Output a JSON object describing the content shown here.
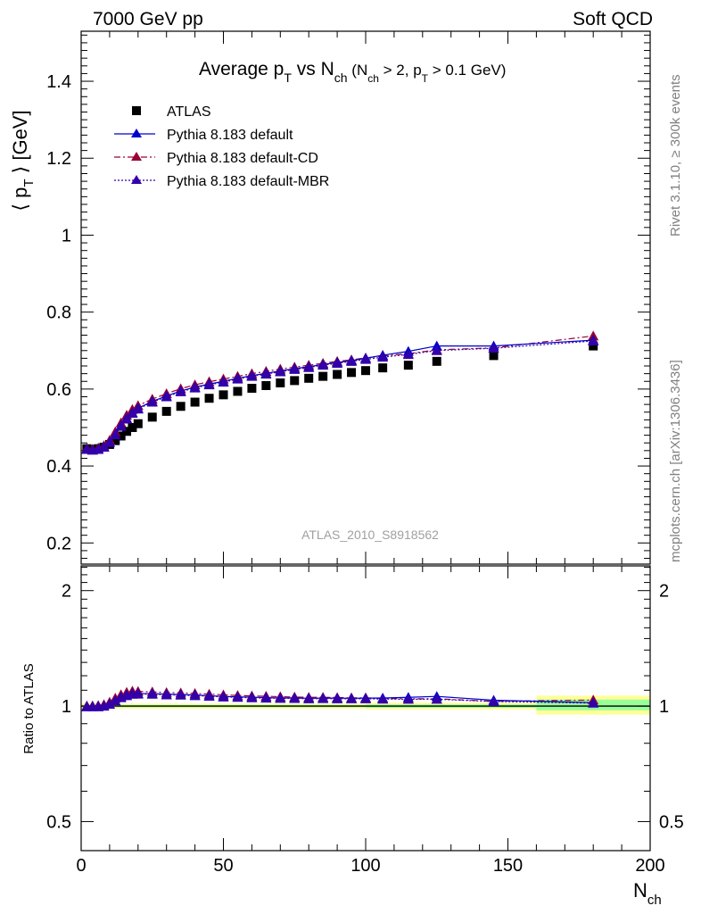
{
  "header": {
    "left": "7000 GeV pp",
    "right": "Soft QCD"
  },
  "side_labels": {
    "top": "Rivet 3.1.10, ≥ 300k events",
    "bottom": "mcplots.cern.ch [arXiv:1306.3436]"
  },
  "watermark": "ATLAS_2010_S8918562",
  "colors": {
    "atlas": "#000000",
    "default": "#0000cc",
    "cd": "#990033",
    "mbr": "#3300aa",
    "band_yellow": "#ffff99",
    "band_green": "#99ff99"
  },
  "chart_data": [
    {
      "type": "line",
      "title_parts": {
        "main": "Average p",
        "main_sub": "T",
        "mid": " vs N",
        "mid_sub": "ch",
        "cut_open": " (N",
        "cut_sub1": "ch",
        "cut_mid": " > 2, p",
        "cut_sub2": "T",
        "cut_close": " > 0.1 GeV)"
      },
      "ylabel_parts": {
        "open": "⟨ p",
        "sub": "T",
        "close": " ⟩ [GeV]"
      },
      "xlim": [
        0,
        200
      ],
      "ylim": [
        0.145,
        1.53
      ],
      "yticks": [
        0.2,
        0.4,
        0.6,
        0.8,
        1,
        1.2,
        1.4
      ],
      "ytick_labels": [
        "0.2",
        "0.4",
        "0.6",
        "0.8",
        "1",
        "1.2",
        "1.4"
      ],
      "legend": [
        {
          "key": "atlas",
          "label": "ATLAS"
        },
        {
          "key": "default",
          "label": "Pythia 8.183 default"
        },
        {
          "key": "cd",
          "label": "Pythia 8.183 default-CD"
        },
        {
          "key": "mbr",
          "label": "Pythia 8.183 default-MBR"
        }
      ],
      "series": [
        {
          "key": "atlas",
          "name": "ATLAS",
          "marker": "square",
          "x": [
            2,
            4,
            6,
            8,
            10,
            12,
            14,
            16,
            18,
            20,
            25,
            30,
            35,
            40,
            45,
            50,
            55,
            60,
            65,
            70,
            75,
            80,
            85,
            90,
            95,
            100,
            106,
            115,
            125,
            145,
            180
          ],
          "y": [
            0.445,
            0.443,
            0.445,
            0.449,
            0.456,
            0.466,
            0.478,
            0.49,
            0.5,
            0.51,
            0.527,
            0.542,
            0.555,
            0.566,
            0.576,
            0.585,
            0.594,
            0.602,
            0.609,
            0.616,
            0.622,
            0.628,
            0.633,
            0.638,
            0.643,
            0.648,
            0.655,
            0.662,
            0.672,
            0.687,
            0.712
          ]
        },
        {
          "key": "default",
          "name": "Pythia 8.183 default",
          "marker": "triangle",
          "dash": "",
          "x": [
            2,
            4,
            6,
            8,
            10,
            12,
            14,
            16,
            18,
            20,
            25,
            30,
            35,
            40,
            45,
            50,
            55,
            60,
            65,
            70,
            75,
            80,
            85,
            90,
            95,
            100,
            106,
            115,
            125,
            145,
            180
          ],
          "y": [
            0.444,
            0.442,
            0.444,
            0.45,
            0.462,
            0.482,
            0.505,
            0.524,
            0.539,
            0.55,
            0.568,
            0.582,
            0.595,
            0.605,
            0.613,
            0.62,
            0.628,
            0.635,
            0.641,
            0.647,
            0.653,
            0.658,
            0.664,
            0.669,
            0.674,
            0.68,
            0.688,
            0.698,
            0.712,
            0.712,
            0.727
          ]
        },
        {
          "key": "cd",
          "name": "Pythia 8.183 default-CD",
          "marker": "triangle",
          "dash": "7,3,2,3",
          "x": [
            2,
            4,
            6,
            8,
            10,
            12,
            14,
            16,
            18,
            20,
            25,
            30,
            35,
            40,
            45,
            50,
            55,
            60,
            65,
            70,
            75,
            80,
            85,
            90,
            95,
            100,
            106,
            115,
            125,
            145,
            180
          ],
          "y": [
            0.446,
            0.444,
            0.447,
            0.453,
            0.467,
            0.489,
            0.512,
            0.532,
            0.547,
            0.557,
            0.574,
            0.588,
            0.601,
            0.611,
            0.619,
            0.626,
            0.633,
            0.64,
            0.646,
            0.652,
            0.657,
            0.662,
            0.667,
            0.672,
            0.676,
            0.681,
            0.686,
            0.692,
            0.702,
            0.707,
            0.738
          ]
        },
        {
          "key": "mbr",
          "name": "Pythia 8.183 default-MBR",
          "marker": "triangle",
          "dash": "2,2",
          "x": [
            2,
            4,
            6,
            8,
            10,
            12,
            14,
            16,
            18,
            20,
            25,
            30,
            35,
            40,
            45,
            50,
            55,
            60,
            65,
            70,
            75,
            80,
            85,
            90,
            95,
            100,
            106,
            115,
            125,
            145,
            180
          ],
          "y": [
            0.443,
            0.441,
            0.443,
            0.449,
            0.461,
            0.481,
            0.503,
            0.522,
            0.537,
            0.548,
            0.566,
            0.58,
            0.593,
            0.603,
            0.611,
            0.618,
            0.626,
            0.633,
            0.639,
            0.645,
            0.651,
            0.656,
            0.662,
            0.667,
            0.672,
            0.677,
            0.683,
            0.69,
            0.7,
            0.706,
            0.725
          ]
        }
      ]
    },
    {
      "type": "line",
      "ylabel": "Ratio to ATLAS",
      "xlabel_parts": {
        "main": "N",
        "sub": "ch"
      },
      "xlim": [
        0,
        200
      ],
      "ylim": [
        0.42,
        2.32
      ],
      "yticks": [
        0.5,
        1,
        2
      ],
      "ytick_labels": [
        "0.5",
        "1",
        "2"
      ],
      "xticks": [
        0,
        50,
        100,
        150,
        200
      ],
      "xtick_labels": [
        "0",
        "50",
        "100",
        "150",
        "200"
      ],
      "reference": 1,
      "bands": [
        {
          "x0": 0,
          "x1": 100,
          "yellow": [
            0.985,
            1.015
          ],
          "green": [
            0.993,
            1.007
          ]
        },
        {
          "x0": 100,
          "x1": 160,
          "yellow": [
            0.98,
            1.02
          ],
          "green": [
            0.99,
            1.01
          ]
        },
        {
          "x0": 160,
          "x1": 200,
          "yellow": [
            0.95,
            1.065
          ],
          "green": [
            0.975,
            1.04
          ]
        }
      ],
      "series": [
        {
          "key": "default",
          "marker": "triangle",
          "dash": "",
          "x": [
            2,
            4,
            6,
            8,
            10,
            12,
            14,
            16,
            18,
            20,
            25,
            30,
            35,
            40,
            45,
            50,
            55,
            60,
            65,
            70,
            75,
            80,
            85,
            90,
            95,
            100,
            106,
            115,
            125,
            145,
            180
          ],
          "y": [
            0.998,
            0.998,
            0.998,
            1.002,
            1.013,
            1.034,
            1.056,
            1.069,
            1.078,
            1.078,
            1.078,
            1.074,
            1.072,
            1.069,
            1.064,
            1.06,
            1.057,
            1.055,
            1.052,
            1.05,
            1.05,
            1.048,
            1.049,
            1.049,
            1.048,
            1.049,
            1.05,
            1.054,
            1.06,
            1.036,
            1.021
          ]
        },
        {
          "key": "cd",
          "marker": "triangle",
          "dash": "7,3,2,3",
          "x": [
            2,
            4,
            6,
            8,
            10,
            12,
            14,
            16,
            18,
            20,
            25,
            30,
            35,
            40,
            45,
            50,
            55,
            60,
            65,
            70,
            75,
            80,
            85,
            90,
            95,
            100,
            106,
            115,
            125,
            145,
            180
          ],
          "y": [
            1.002,
            1.002,
            1.004,
            1.009,
            1.024,
            1.049,
            1.071,
            1.086,
            1.094,
            1.092,
            1.089,
            1.085,
            1.083,
            1.079,
            1.075,
            1.07,
            1.066,
            1.063,
            1.061,
            1.058,
            1.056,
            1.054,
            1.054,
            1.053,
            1.051,
            1.051,
            1.047,
            1.045,
            1.045,
            1.029,
            1.037
          ]
        },
        {
          "key": "mbr",
          "marker": "triangle",
          "dash": "2,2",
          "x": [
            2,
            4,
            6,
            8,
            10,
            12,
            14,
            16,
            18,
            20,
            25,
            30,
            35,
            40,
            45,
            50,
            55,
            60,
            65,
            70,
            75,
            80,
            85,
            90,
            95,
            100,
            106,
            115,
            125,
            145,
            180
          ],
          "y": [
            0.996,
            0.996,
            0.996,
            1.0,
            1.011,
            1.032,
            1.052,
            1.065,
            1.074,
            1.075,
            1.074,
            1.07,
            1.068,
            1.065,
            1.061,
            1.056,
            1.054,
            1.051,
            1.049,
            1.048,
            1.047,
            1.045,
            1.046,
            1.045,
            1.045,
            1.045,
            1.043,
            1.042,
            1.042,
            1.028,
            1.018
          ]
        }
      ]
    }
  ]
}
